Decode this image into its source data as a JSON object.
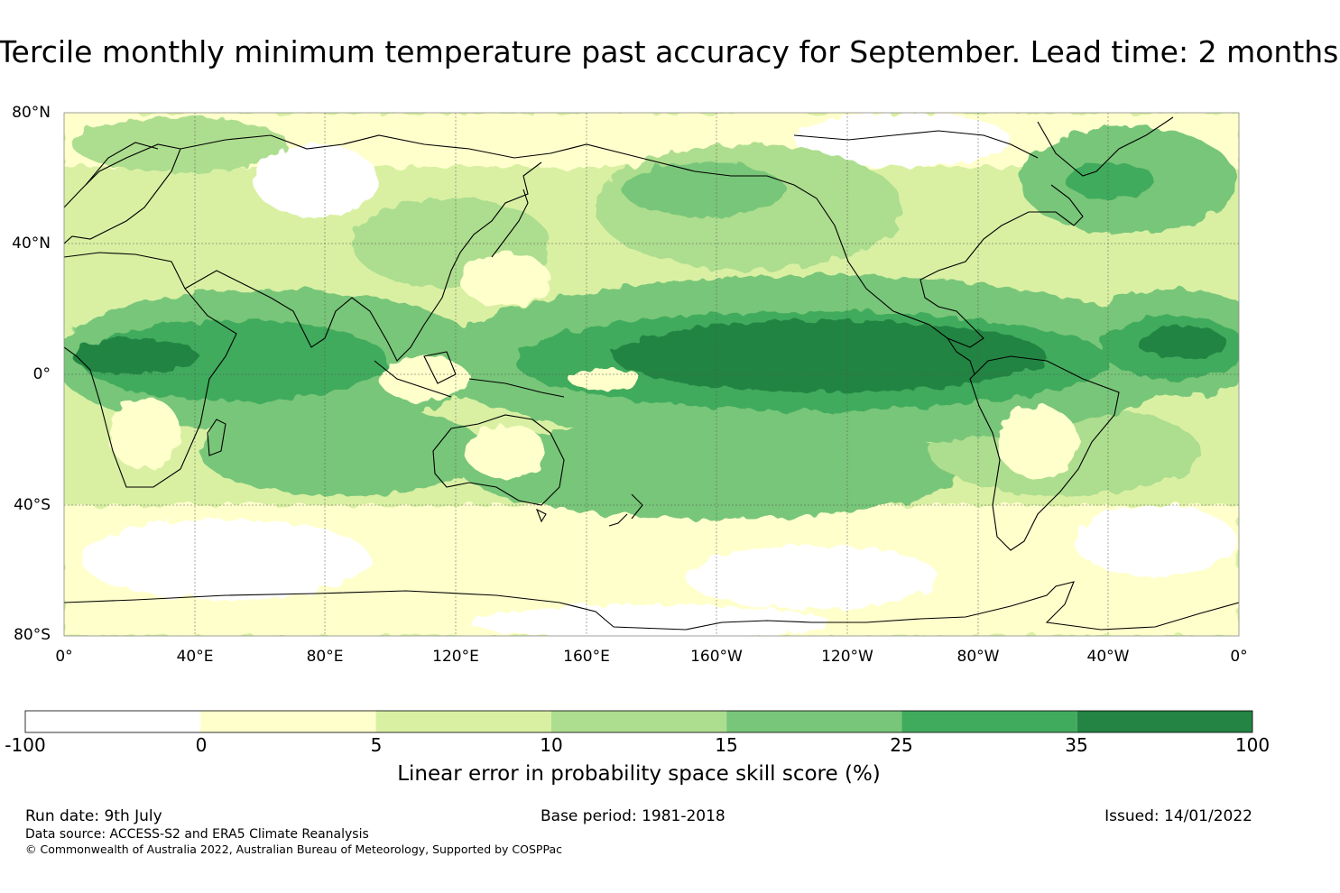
{
  "title": "Tercile monthly minimum temperature past accuracy for September. Lead time: 2 months",
  "map": {
    "lat_labels": [
      "80°N",
      "40°N",
      "0°",
      "40°S",
      "80°S"
    ],
    "lon_labels": [
      "0°",
      "40°E",
      "80°E",
      "120°E",
      "160°E",
      "160°W",
      "120°W",
      "80°W",
      "40°W",
      "0°"
    ]
  },
  "colorbar": {
    "title": "Linear error in probability space skill score (%)",
    "bounds": [
      "-100",
      "0",
      "5",
      "10",
      "15",
      "25",
      "35",
      "100"
    ],
    "colors": [
      "#ffffff",
      "#ffffcc",
      "#d9f0a3",
      "#addd8e",
      "#78c679",
      "#41ab5d",
      "#238443"
    ]
  },
  "footer": {
    "run_date": "Run date: 9th July",
    "base_period": "Base period: 1981-2018",
    "issued": "Issued: 14/01/2022",
    "data_source": "Data source: ACCESS-S2 and ERA5 Climate Reanalysis",
    "copyright": "© Commonwealth of Australia 2022, Australian Bureau of Meteorology, Supported by COSPPac"
  }
}
